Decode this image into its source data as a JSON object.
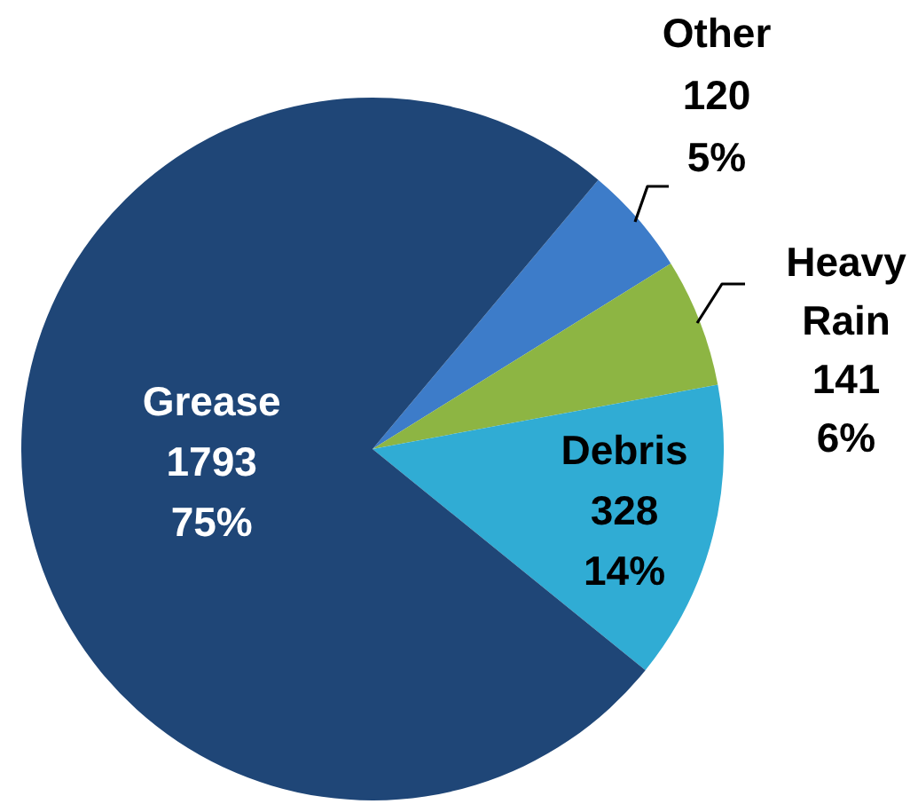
{
  "chart_data": {
    "type": "pie",
    "categories": [
      "Other",
      "Heavy Rain",
      "Debris",
      "Grease"
    ],
    "values": [
      120,
      141,
      328,
      1793
    ],
    "colors": [
      "#3d7cc9",
      "#8db543",
      "#30acd4",
      "#1f4677"
    ],
    "value_labels": [
      "120\n5%",
      "141\n6%",
      "328\n14%",
      "1793\n75%"
    ]
  }
}
